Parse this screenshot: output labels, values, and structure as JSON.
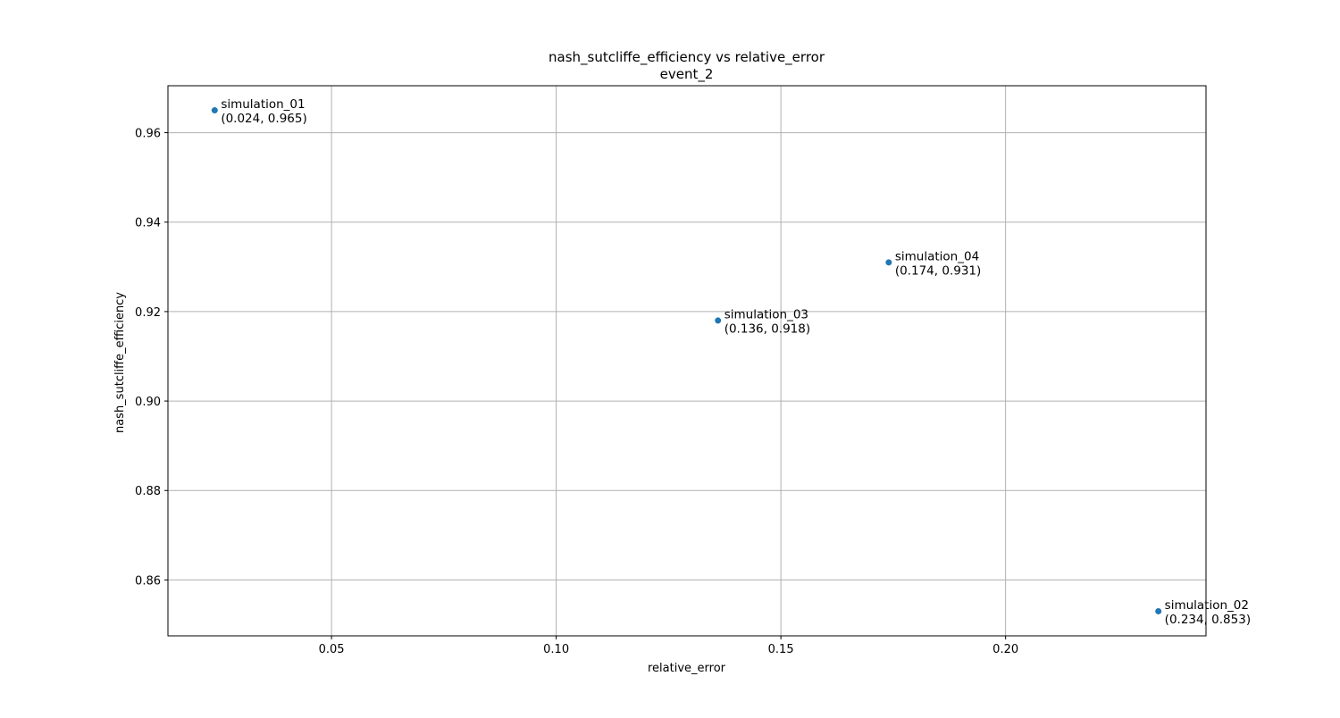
{
  "chart_data": {
    "type": "scatter",
    "title": "nash_sutcliffe_efficiency vs relative_error",
    "subtitle": "event_2",
    "xlabel": "relative_error",
    "ylabel": "nash_sutcliffe_efficiency",
    "xlim": [
      0.0136,
      0.2446
    ],
    "ylim": [
      0.8475,
      0.9705
    ],
    "xticks": [
      {
        "value": 0.05,
        "label": "0.05"
      },
      {
        "value": 0.1,
        "label": "0.10"
      },
      {
        "value": 0.15,
        "label": "0.15"
      },
      {
        "value": 0.2,
        "label": "0.20"
      }
    ],
    "yticks": [
      {
        "value": 0.86,
        "label": "0.86"
      },
      {
        "value": 0.88,
        "label": "0.88"
      },
      {
        "value": 0.9,
        "label": "0.90"
      },
      {
        "value": 0.92,
        "label": "0.92"
      },
      {
        "value": 0.94,
        "label": "0.94"
      },
      {
        "value": 0.96,
        "label": "0.96"
      }
    ],
    "grid": true,
    "marker_color": "#1f77b4",
    "points": [
      {
        "name": "simulation_01",
        "x": 0.024,
        "y": 0.965,
        "coord_label": "(0.024, 0.965)"
      },
      {
        "name": "simulation_03",
        "x": 0.136,
        "y": 0.918,
        "coord_label": "(0.136, 0.918)"
      },
      {
        "name": "simulation_04",
        "x": 0.174,
        "y": 0.931,
        "coord_label": "(0.174, 0.931)"
      },
      {
        "name": "simulation_02",
        "x": 0.234,
        "y": 0.853,
        "coord_label": "(0.234, 0.853)"
      }
    ]
  }
}
